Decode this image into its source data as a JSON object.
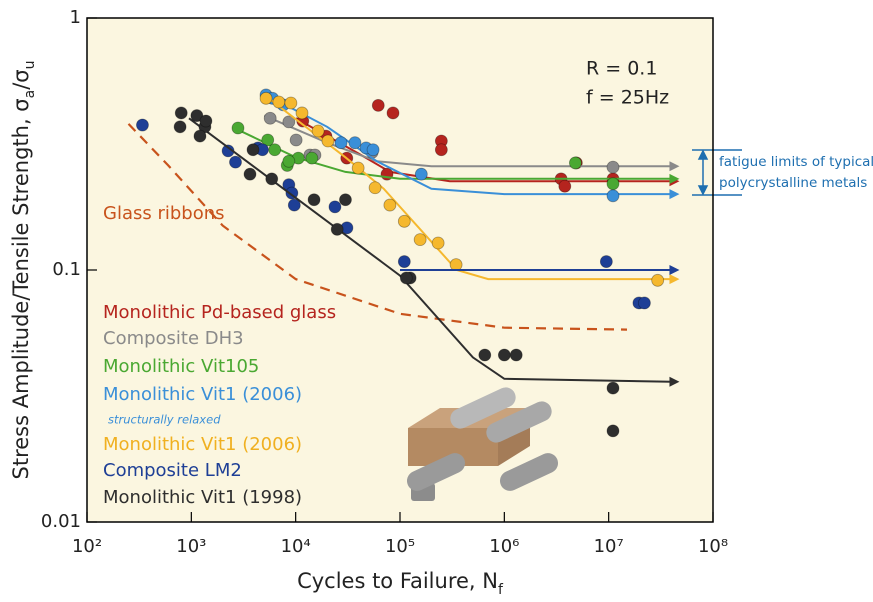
{
  "chart_data": {
    "type": "scatter",
    "ylabel_parts": [
      "Stress Amplitude/Tensile Strength, σ",
      "a",
      "/σ",
      "u"
    ],
    "xlabel_parts": [
      "Cycles to Failure, N",
      "f"
    ],
    "log_x": true,
    "log_y": true,
    "xlim": [
      100,
      100000000
    ],
    "ylim": [
      0.01,
      1
    ],
    "xticks": [
      {
        "value": 100,
        "label": "10²"
      },
      {
        "value": 1000,
        "label": "10³"
      },
      {
        "value": 10000,
        "label": "10⁴"
      },
      {
        "value": 100000,
        "label": "10⁵"
      },
      {
        "value": 1000000,
        "label": "10⁶"
      },
      {
        "value": 10000000,
        "label": "10⁷"
      },
      {
        "value": 100000000,
        "label": "10⁸"
      }
    ],
    "yticks": [
      0.01,
      0.1,
      1
    ],
    "annotations": [
      "R = 0.1",
      "f = 25Hz",
      "fatigue limits of typical",
      "polycrystalline metals",
      "structurally relaxed"
    ],
    "series": [
      {
        "name": "Glass ribbons",
        "color": "#c8531c",
        "dashed": true,
        "x": [],
        "values": [],
        "fit_x": [
          250,
          600,
          2000,
          10000,
          100000,
          1000000,
          15000000
        ],
        "fit_y": [
          0.38,
          0.26,
          0.15,
          0.092,
          0.067,
          0.059,
          0.058
        ]
      },
      {
        "name": "Monolithic Pd-based glass",
        "color": "#b5241e",
        "x": [
          11700,
          19500,
          30900,
          61900,
          85700,
          75000,
          249000,
          249000,
          3500000,
          3800000,
          4900000,
          11000000
        ],
        "values": [
          0.39,
          0.34,
          0.278,
          0.45,
          0.42,
          0.24,
          0.325,
          0.3,
          0.23,
          0.215,
          0.266,
          0.23
        ],
        "fit_x": [
          10000,
          40000,
          80000,
          300000,
          40000000
        ],
        "fit_y": [
          0.4,
          0.29,
          0.245,
          0.225,
          0.225
        ]
      },
      {
        "name": "Composite DH3",
        "color": "#8a8a8a",
        "x": [
          5700,
          8600,
          10100,
          13700,
          15300,
          54000,
          11000000
        ],
        "values": [
          0.4,
          0.387,
          0.328,
          0.286,
          0.286,
          0.293,
          0.256
        ],
        "fit_x": [
          5000,
          20000,
          60000,
          200000,
          40000000
        ],
        "fit_y": [
          0.41,
          0.32,
          0.27,
          0.258,
          0.258
        ]
      },
      {
        "name": "Monolithic Vit105",
        "color": "#4aa832",
        "x": [
          2800,
          5400,
          6300,
          10600,
          14300,
          8300,
          8600,
          4800000,
          11000000
        ],
        "values": [
          0.366,
          0.328,
          0.3,
          0.278,
          0.278,
          0.26,
          0.27,
          0.266,
          0.22
        ],
        "fit_x": [
          2800,
          10000,
          30000,
          100000,
          40000000
        ],
        "fit_y": [
          0.36,
          0.28,
          0.245,
          0.23,
          0.23
        ]
      },
      {
        "name": "Monolithic Vit1 (2006)",
        "color": "#3a8fd8",
        "x": [
          5200,
          6000,
          7600,
          27200,
          37000,
          47300,
          55200,
          160000,
          11000000
        ],
        "values": [
          0.495,
          0.48,
          0.452,
          0.32,
          0.32,
          0.305,
          0.3,
          0.24,
          0.197
        ],
        "fit_x": [
          5000,
          20000,
          60000,
          200000,
          1000000,
          40000000
        ],
        "fit_y": [
          0.5,
          0.37,
          0.27,
          0.21,
          0.2,
          0.2
        ]
      },
      {
        "name": "Monolithic Vit1 (2006)",
        "color": "#f5b82e",
        "x": [
          5200,
          6900,
          9000,
          11500,
          16400,
          20400,
          39700,
          57700,
          80000,
          110000,
          156000,
          232000,
          345000,
          29500000
        ],
        "values": [
          0.48,
          0.464,
          0.46,
          0.42,
          0.356,
          0.325,
          0.254,
          0.212,
          0.181,
          0.156,
          0.132,
          0.128,
          0.105,
          0.091
        ],
        "fit_x": [
          5500,
          30000,
          70000,
          350000,
          700000,
          40000000
        ],
        "fit_y": [
          0.48,
          0.28,
          0.21,
          0.1,
          0.092,
          0.092
        ]
      },
      {
        "name": "Composite LM2",
        "color": "#1e3f96",
        "x": [
          340,
          2250,
          2650,
          4350,
          4800,
          8600,
          9200,
          9700,
          23800,
          31000,
          110000,
          9500000,
          19500000,
          22000000
        ],
        "values": [
          0.376,
          0.297,
          0.268,
          0.305,
          0.3,
          0.218,
          0.202,
          0.181,
          0.178,
          0.147,
          0.108,
          0.108,
          0.074,
          0.074
        ],
        "fit_x": [
          100000,
          40000000
        ],
        "fit_y": [
          0.1,
          0.1
        ]
      },
      {
        "name": "Monolithic Vit1 (1998)",
        "color": "#2e2e2e",
        "x": [
          800,
          780,
          1130,
          1350,
          1380,
          1210,
          3900,
          5900,
          3650,
          15000,
          30000,
          25000,
          125000,
          115000,
          650000,
          1300000,
          1000000,
          11000000,
          11000000
        ],
        "values": [
          0.42,
          0.37,
          0.41,
          0.37,
          0.39,
          0.34,
          0.3,
          0.23,
          0.24,
          0.19,
          0.19,
          0.145,
          0.093,
          0.093,
          0.046,
          0.046,
          0.046,
          0.034,
          0.023
        ],
        "fit_x": [
          950,
          100000,
          500000,
          1000000,
          40000000
        ],
        "fit_y": [
          0.4,
          0.095,
          0.045,
          0.037,
          0.036
        ]
      }
    ]
  }
}
